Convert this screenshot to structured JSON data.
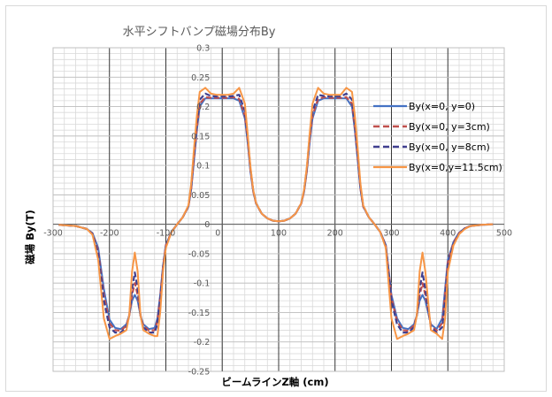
{
  "chart_data": {
    "type": "line",
    "title": "水平シフトバンプ磁場分布By",
    "xlabel": "ビームラインZ軸 (cm)",
    "ylabel": "磁場 By(T)",
    "xlim": [
      -300,
      500
    ],
    "ylim": [
      -0.25,
      0.3
    ],
    "x_major_step": 100,
    "x_minor_step": 20,
    "y_major_step": 0.05,
    "y_minor_step": 0.01,
    "x_ticks": [
      "-300",
      "-200",
      "-100",
      "0",
      "100",
      "200",
      "300",
      "400",
      "500"
    ],
    "y_ticks": [
      "-0.25",
      "-0.2",
      "-0.15",
      "-0.1",
      "-0.05",
      "0",
      "0.05",
      "0.1",
      "0.15",
      "0.2",
      "0.25",
      "0.3"
    ],
    "grid": true,
    "legend_position": "right",
    "series": [
      {
        "name": "By(x=0, y=0)",
        "color": "#4472c4",
        "dash": "solid",
        "x": [
          -290,
          -260,
          -240,
          -230,
          -220,
          -210,
          -200,
          -190,
          -180,
          -170,
          -165,
          -160,
          -155,
          -150,
          -145,
          -140,
          -130,
          -120,
          -115,
          -110,
          -105,
          -100,
          -90,
          -80,
          -70,
          -60,
          -55,
          -50,
          -45,
          -40,
          -30,
          -20,
          -10,
          0,
          10,
          20,
          30,
          40,
          45,
          50,
          55,
          60,
          70,
          80,
          90,
          100,
          110,
          120,
          130,
          140,
          145,
          150,
          155,
          160,
          170,
          180,
          190,
          200,
          210,
          220,
          230,
          235,
          240,
          245,
          250,
          260,
          270,
          280,
          290,
          300,
          310,
          320,
          330,
          340,
          345,
          350,
          355,
          360,
          370,
          380,
          390,
          395,
          400,
          410,
          420,
          430,
          440,
          460,
          480
        ],
        "y": [
          -0.001,
          -0.003,
          -0.008,
          -0.015,
          -0.04,
          -0.11,
          -0.162,
          -0.176,
          -0.178,
          -0.17,
          -0.155,
          -0.13,
          -0.12,
          -0.13,
          -0.155,
          -0.17,
          -0.178,
          -0.176,
          -0.16,
          -0.12,
          -0.07,
          -0.035,
          -0.013,
          0.0,
          0.012,
          0.03,
          0.06,
          0.11,
          0.16,
          0.2,
          0.214,
          0.214,
          0.214,
          0.214,
          0.214,
          0.214,
          0.21,
          0.18,
          0.14,
          0.09,
          0.055,
          0.035,
          0.018,
          0.01,
          0.006,
          0.005,
          0.006,
          0.01,
          0.018,
          0.035,
          0.055,
          0.09,
          0.14,
          0.18,
          0.21,
          0.214,
          0.214,
          0.214,
          0.214,
          0.214,
          0.2,
          0.16,
          0.11,
          0.06,
          0.03,
          0.012,
          0.0,
          -0.013,
          -0.035,
          -0.12,
          -0.16,
          -0.176,
          -0.178,
          -0.17,
          -0.155,
          -0.13,
          -0.12,
          -0.13,
          -0.17,
          -0.178,
          -0.16,
          -0.11,
          -0.06,
          -0.03,
          -0.014,
          -0.007,
          -0.003,
          -0.001,
          0.0
        ]
      },
      {
        "name": "By(x=0, y=3cm)",
        "color": "#c0504d",
        "dash": "dashed",
        "x": [
          -290,
          -260,
          -240,
          -230,
          -220,
          -210,
          -200,
          -190,
          -180,
          -170,
          -165,
          -160,
          -155,
          -150,
          -145,
          -140,
          -130,
          -120,
          -115,
          -110,
          -105,
          -100,
          -90,
          -80,
          -70,
          -60,
          -55,
          -50,
          -45,
          -40,
          -30,
          -20,
          -10,
          0,
          10,
          20,
          30,
          40,
          45,
          50,
          55,
          60,
          70,
          80,
          90,
          100,
          110,
          120,
          130,
          140,
          145,
          150,
          155,
          160,
          170,
          180,
          190,
          200,
          210,
          220,
          230,
          235,
          240,
          245,
          250,
          260,
          270,
          280,
          290,
          300,
          310,
          320,
          330,
          340,
          345,
          350,
          355,
          360,
          370,
          380,
          390,
          395,
          400,
          410,
          420,
          430,
          440,
          460,
          480
        ],
        "y": [
          -0.001,
          -0.003,
          -0.008,
          -0.016,
          -0.045,
          -0.12,
          -0.168,
          -0.18,
          -0.181,
          -0.172,
          -0.155,
          -0.12,
          -0.1,
          -0.12,
          -0.155,
          -0.172,
          -0.181,
          -0.18,
          -0.165,
          -0.125,
          -0.072,
          -0.036,
          -0.013,
          0.0,
          0.012,
          0.03,
          0.062,
          0.115,
          0.165,
          0.205,
          0.216,
          0.215,
          0.215,
          0.215,
          0.215,
          0.216,
          0.213,
          0.185,
          0.145,
          0.092,
          0.056,
          0.035,
          0.018,
          0.01,
          0.006,
          0.005,
          0.006,
          0.01,
          0.018,
          0.035,
          0.056,
          0.092,
          0.145,
          0.185,
          0.213,
          0.216,
          0.215,
          0.215,
          0.215,
          0.216,
          0.205,
          0.165,
          0.115,
          0.062,
          0.03,
          0.012,
          0.0,
          -0.013,
          -0.036,
          -0.125,
          -0.165,
          -0.18,
          -0.181,
          -0.172,
          -0.155,
          -0.12,
          -0.1,
          -0.12,
          -0.172,
          -0.181,
          -0.168,
          -0.12,
          -0.065,
          -0.032,
          -0.015,
          -0.007,
          -0.003,
          -0.001,
          0.0
        ]
      },
      {
        "name": "By(x=0, y=8cm)",
        "color": "#403f8f",
        "dash": "dashed",
        "x": [
          -290,
          -260,
          -240,
          -230,
          -220,
          -210,
          -200,
          -190,
          -180,
          -170,
          -165,
          -160,
          -155,
          -150,
          -145,
          -140,
          -130,
          -120,
          -115,
          -110,
          -105,
          -100,
          -90,
          -80,
          -70,
          -60,
          -55,
          -50,
          -45,
          -40,
          -30,
          -20,
          -10,
          0,
          10,
          20,
          30,
          40,
          45,
          50,
          55,
          60,
          70,
          80,
          90,
          100,
          110,
          120,
          130,
          140,
          145,
          150,
          155,
          160,
          170,
          180,
          190,
          200,
          210,
          220,
          230,
          235,
          240,
          245,
          250,
          260,
          270,
          280,
          290,
          300,
          310,
          320,
          330,
          340,
          345,
          350,
          355,
          360,
          370,
          380,
          390,
          395,
          400,
          410,
          420,
          430,
          440,
          460,
          480
        ],
        "y": [
          -0.001,
          -0.003,
          -0.008,
          -0.017,
          -0.05,
          -0.13,
          -0.175,
          -0.184,
          -0.184,
          -0.175,
          -0.155,
          -0.11,
          -0.082,
          -0.11,
          -0.155,
          -0.175,
          -0.184,
          -0.184,
          -0.17,
          -0.13,
          -0.075,
          -0.037,
          -0.013,
          0.0,
          0.012,
          0.031,
          0.065,
          0.12,
          0.172,
          0.212,
          0.222,
          0.218,
          0.217,
          0.217,
          0.217,
          0.218,
          0.22,
          0.192,
          0.15,
          0.095,
          0.057,
          0.036,
          0.018,
          0.01,
          0.006,
          0.005,
          0.006,
          0.01,
          0.018,
          0.036,
          0.057,
          0.095,
          0.15,
          0.192,
          0.22,
          0.218,
          0.217,
          0.217,
          0.217,
          0.222,
          0.212,
          0.172,
          0.12,
          0.065,
          0.031,
          0.012,
          0.0,
          -0.013,
          -0.037,
          -0.13,
          -0.17,
          -0.184,
          -0.184,
          -0.175,
          -0.155,
          -0.11,
          -0.082,
          -0.11,
          -0.175,
          -0.184,
          -0.175,
          -0.13,
          -0.07,
          -0.034,
          -0.016,
          -0.007,
          -0.003,
          -0.001,
          0.0
        ]
      },
      {
        "name": "By(x=0,y=11.5cm)",
        "color": "#f79646",
        "dash": "solid",
        "x": [
          -290,
          -260,
          -240,
          -230,
          -220,
          -210,
          -200,
          -190,
          -180,
          -170,
          -165,
          -160,
          -155,
          -150,
          -145,
          -140,
          -130,
          -120,
          -115,
          -110,
          -105,
          -100,
          -90,
          -80,
          -70,
          -60,
          -55,
          -50,
          -45,
          -40,
          -30,
          -20,
          -10,
          0,
          10,
          20,
          30,
          40,
          45,
          50,
          55,
          60,
          70,
          80,
          90,
          100,
          110,
          120,
          130,
          140,
          145,
          150,
          155,
          160,
          170,
          180,
          190,
          200,
          210,
          220,
          230,
          235,
          240,
          245,
          250,
          260,
          270,
          280,
          290,
          300,
          310,
          320,
          330,
          340,
          345,
          350,
          355,
          360,
          370,
          380,
          390,
          395,
          400,
          410,
          420,
          430,
          440,
          460,
          480
        ],
        "y": [
          -0.001,
          -0.003,
          -0.008,
          -0.018,
          -0.06,
          -0.16,
          -0.195,
          -0.19,
          -0.186,
          -0.18,
          -0.155,
          -0.08,
          -0.048,
          -0.08,
          -0.155,
          -0.18,
          -0.186,
          -0.19,
          -0.19,
          -0.15,
          -0.08,
          -0.04,
          -0.013,
          0.0,
          0.012,
          0.032,
          0.07,
          0.13,
          0.185,
          0.225,
          0.232,
          0.222,
          0.22,
          0.22,
          0.22,
          0.222,
          0.232,
          0.205,
          0.155,
          0.098,
          0.058,
          0.036,
          0.018,
          0.01,
          0.006,
          0.005,
          0.006,
          0.01,
          0.018,
          0.036,
          0.058,
          0.098,
          0.155,
          0.205,
          0.232,
          0.222,
          0.22,
          0.22,
          0.22,
          0.232,
          0.225,
          0.185,
          0.13,
          0.07,
          0.032,
          0.012,
          0.0,
          -0.013,
          -0.04,
          -0.16,
          -0.195,
          -0.19,
          -0.186,
          -0.18,
          -0.155,
          -0.08,
          -0.048,
          -0.08,
          -0.18,
          -0.186,
          -0.195,
          -0.16,
          -0.08,
          -0.036,
          -0.017,
          -0.008,
          -0.003,
          -0.001,
          0.0
        ]
      }
    ]
  }
}
